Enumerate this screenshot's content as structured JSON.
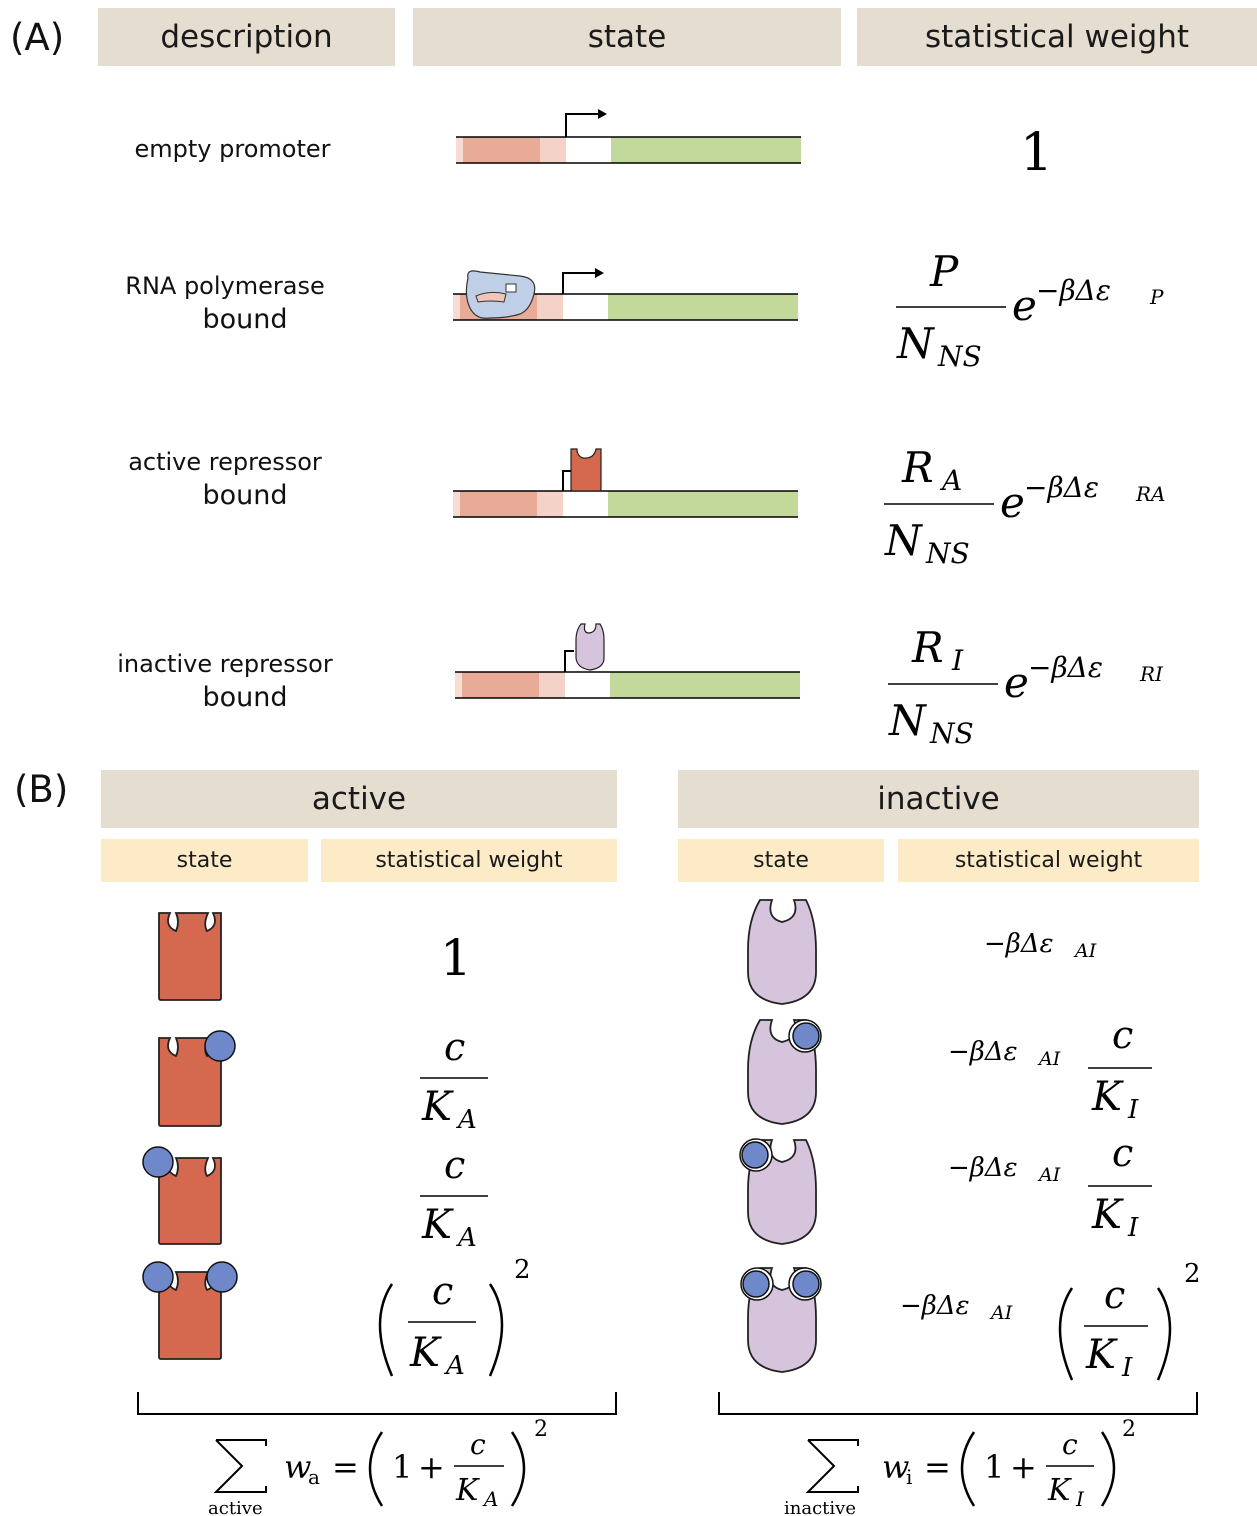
{
  "panel_a": {
    "label": "(A)",
    "headers": [
      "description",
      "state",
      "statistical weight"
    ],
    "rows": [
      {
        "desc1": "empty promoter",
        "desc2": ""
      },
      {
        "desc1": "RNA polymerase",
        "desc2": "bound"
      },
      {
        "desc1": "active repressor",
        "desc2": "bound"
      },
      {
        "desc1": "inactive repressor",
        "desc2": "bound"
      }
    ],
    "weights": {
      "w0": "1",
      "num_p": "P",
      "num_ra": "R",
      "sub_ra": "A",
      "num_ri": "R",
      "sub_ri": "I",
      "den": "N",
      "den_sub": "NS",
      "exp_base": "e",
      "exp_prefix": "−βΔε",
      "exp_sub_p": "P",
      "exp_sub_ra": "RA",
      "exp_sub_ri": "RI"
    }
  },
  "panel_b": {
    "label": "(B)",
    "active": {
      "title": "active",
      "state": "state",
      "weight": "statistical weight",
      "sum_label": "active",
      "w_sym": "w",
      "w_sub": "a"
    },
    "inactive": {
      "title": "inactive",
      "state": "state",
      "weight": "statistical weight",
      "sum_label": "inactive",
      "w_sym": "w",
      "w_sub": "i"
    },
    "math": {
      "one": "1",
      "c": "c",
      "K": "K",
      "KA_sub": "A",
      "KI_sub": "I",
      "exp_ai": "−βΔε",
      "exp_ai_sub": "AI",
      "power": "2",
      "plus": "+",
      "eq": "="
    }
  },
  "colors": {
    "header_bg": "#e4ddd0",
    "subheader_bg": "#fdebc8",
    "repressor_active": "#d4694f",
    "repressor_inactive": "#d5c4dc",
    "ligand": "#6e88c9",
    "gene": "#c3d89b",
    "operator": "#e8ab98",
    "polymerase": "#bfcfe8"
  }
}
